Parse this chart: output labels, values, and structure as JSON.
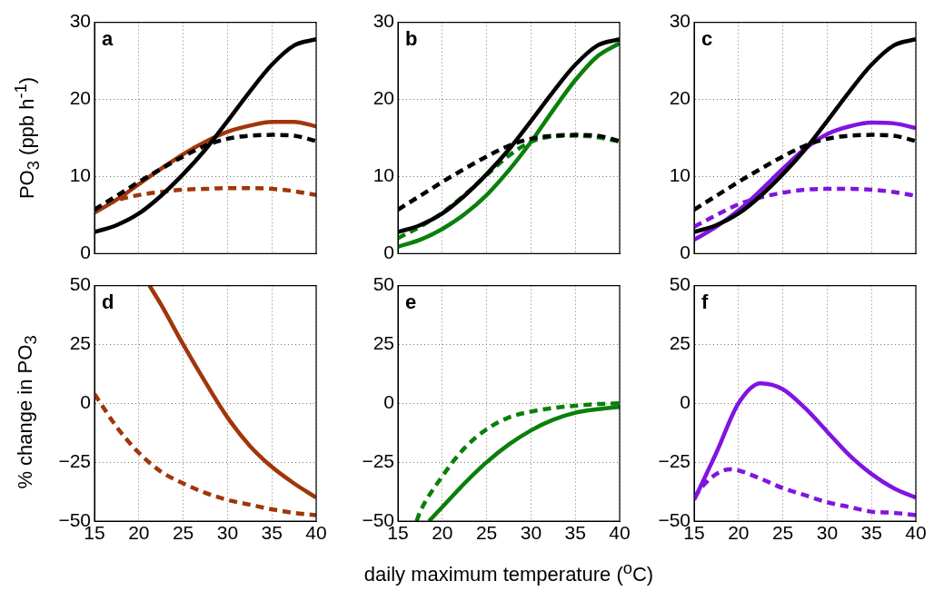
{
  "chart_data": [
    {
      "type": "line",
      "ylabel": "PO$_{3}$ (ppb h$^{-1}$)",
      "annotations": [
        "a"
      ],
      "x": [
        15,
        17.5,
        20,
        22.5,
        25,
        27.5,
        30,
        32.5,
        35,
        37.5,
        40
      ],
      "xlim": [
        15,
        40
      ],
      "xticks": [
        15,
        20,
        25,
        30,
        35,
        40
      ],
      "ylim": [
        0,
        30
      ],
      "yticks": [
        0,
        10,
        20,
        30
      ],
      "grid": true,
      "tick_labels": "y",
      "series": [
        {
          "color": "#000000",
          "line_style": "solid",
          "values": [
            2.8,
            3.7,
            5.2,
            7.5,
            10.3,
            13.5,
            17.2,
            21,
            24.5,
            27,
            27.8
          ]
        },
        {
          "color": "#000000",
          "line_style": "dashed",
          "values": [
            5.7,
            7.5,
            9.3,
            11,
            12.6,
            14,
            14.9,
            15.3,
            15.4,
            15.3,
            14.6
          ]
        },
        {
          "color": "#a0360a",
          "line_style": "solid",
          "values": [
            5.3,
            7,
            9,
            11,
            12.9,
            14.5,
            15.8,
            16.6,
            17.1,
            17.1,
            16.5
          ]
        },
        {
          "color": "#a0360a",
          "line_style": "dashed",
          "values": [
            5.8,
            6.9,
            7.6,
            8,
            8.3,
            8.4,
            8.5,
            8.5,
            8.4,
            8.1,
            7.6
          ]
        }
      ]
    },
    {
      "type": "line",
      "annotations": [
        "b"
      ],
      "x": [
        15,
        17.5,
        20,
        22.5,
        25,
        27.5,
        30,
        32.5,
        35,
        37.5,
        40
      ],
      "xlim": [
        15,
        40
      ],
      "xticks": [
        15,
        20,
        25,
        30,
        35,
        40
      ],
      "ylim": [
        0,
        30
      ],
      "yticks": [
        0,
        10,
        20,
        30
      ],
      "grid": true,
      "tick_labels": "y",
      "series": [
        {
          "color": "#000000",
          "line_style": "solid",
          "values": [
            2.8,
            3.7,
            5.2,
            7.5,
            10.3,
            13.5,
            17.2,
            21,
            24.5,
            27,
            27.8
          ]
        },
        {
          "color": "#000000",
          "line_style": "dashed",
          "values": [
            5.7,
            7.5,
            9.3,
            11,
            12.6,
            14,
            14.9,
            15.3,
            15.4,
            15.3,
            14.6
          ]
        },
        {
          "color": "#0a7f0a",
          "line_style": "solid",
          "values": [
            0.9,
            1.8,
            3.2,
            5.1,
            7.6,
            10.8,
            14.5,
            18.6,
            22.5,
            25.6,
            27.3
          ]
        },
        {
          "color": "#0a7f0a",
          "line_style": "dashed",
          "values": [
            2,
            3.5,
            5.3,
            7.6,
            10.2,
            12.7,
            14.5,
            15.2,
            15.3,
            15.1,
            14.5
          ]
        }
      ]
    },
    {
      "type": "line",
      "annotations": [
        "c"
      ],
      "x": [
        15,
        17.5,
        20,
        22.5,
        25,
        27.5,
        30,
        32.5,
        35,
        37.5,
        40
      ],
      "xlim": [
        15,
        40
      ],
      "xticks": [
        15,
        20,
        25,
        30,
        35,
        40
      ],
      "ylim": [
        0,
        30
      ],
      "yticks": [
        0,
        10,
        20,
        30
      ],
      "grid": true,
      "tick_labels": "y",
      "series": [
        {
          "color": "#000000",
          "line_style": "solid",
          "values": [
            2.8,
            3.7,
            5.2,
            7.5,
            10.3,
            13.5,
            17.2,
            21,
            24.5,
            27,
            27.8
          ]
        },
        {
          "color": "#000000",
          "line_style": "dashed",
          "values": [
            5.7,
            7.5,
            9.3,
            11,
            12.6,
            14,
            14.9,
            15.3,
            15.4,
            15.3,
            14.6
          ]
        },
        {
          "color": "#8014e0",
          "line_style": "solid",
          "values": [
            1.8,
            3.5,
            5.6,
            8.2,
            11,
            13.6,
            15.5,
            16.5,
            17,
            16.9,
            16.3
          ]
        },
        {
          "color": "#8014e0",
          "line_style": "dashed",
          "values": [
            3.5,
            5,
            6.4,
            7.3,
            7.9,
            8.3,
            8.4,
            8.4,
            8.3,
            8,
            7.5
          ]
        }
      ]
    },
    {
      "type": "line",
      "ylabel": "% change in PO$_{3}$",
      "annotations": [
        "d"
      ],
      "xlim": [
        15,
        40
      ],
      "xticks": [
        15,
        20,
        25,
        30,
        35,
        40
      ],
      "ylim": [
        -50,
        50
      ],
      "yticks": [
        -50,
        -25,
        0,
        25,
        50
      ],
      "grid": true,
      "series": [
        {
          "color": "#a0360a",
          "line_style": "solid",
          "x": [
            21.2,
            22.5,
            25,
            27.5,
            30,
            32.5,
            35,
            37.5,
            40
          ],
          "values": [
            50,
            42,
            25,
            9,
            -6,
            -18,
            -27,
            -34,
            -40
          ]
        },
        {
          "color": "#a0360a",
          "line_style": "dashed",
          "x": [
            15,
            17.5,
            20,
            22.5,
            25,
            27.5,
            30,
            32.5,
            35,
            37.5,
            40
          ],
          "values": [
            4,
            -10,
            -21,
            -29,
            -34,
            -38,
            -41,
            -43,
            -45,
            -46.5,
            -47.5
          ]
        }
      ]
    },
    {
      "type": "line",
      "xlabel": "daily maximum temperature ($^{o}$C)",
      "annotations": [
        "e"
      ],
      "xlim": [
        15,
        40
      ],
      "xticks": [
        15,
        20,
        25,
        30,
        35,
        40
      ],
      "ylim": [
        -50,
        50
      ],
      "yticks": [
        -50,
        -25,
        0,
        25,
        50
      ],
      "grid": true,
      "series": [
        {
          "color": "#0a7f0a",
          "line_style": "solid",
          "x": [
            18.5,
            20,
            22.5,
            25,
            27.5,
            30,
            32.5,
            35,
            37.5,
            40
          ],
          "values": [
            -50,
            -44,
            -34,
            -25,
            -17.5,
            -11.5,
            -7,
            -4,
            -2.5,
            -1.5
          ]
        },
        {
          "color": "#0a7f0a",
          "line_style": "dashed",
          "x": [
            17.1,
            17.5,
            20,
            22.5,
            25,
            27.5,
            30,
            32.5,
            35,
            37.5,
            40
          ],
          "values": [
            -50,
            -46,
            -31,
            -19,
            -11,
            -6,
            -3.5,
            -2,
            -1,
            -0.3,
            0
          ]
        }
      ]
    },
    {
      "type": "line",
      "annotations": [
        "f"
      ],
      "xlim": [
        15,
        40
      ],
      "xticks": [
        15,
        20,
        25,
        30,
        35,
        40
      ],
      "ylim": [
        -50,
        50
      ],
      "yticks": [
        -50,
        -25,
        0,
        25,
        50
      ],
      "grid": true,
      "series": [
        {
          "color": "#8014e0",
          "line_style": "solid",
          "x": [
            15,
            17.5,
            20,
            22.5,
            25,
            27.5,
            30,
            32.5,
            35,
            37.5,
            40
          ],
          "values": [
            -41,
            -21,
            0,
            8.5,
            6,
            -2,
            -12,
            -22,
            -30,
            -36,
            -40
          ]
        },
        {
          "color": "#8014e0",
          "line_style": "dashed",
          "x": [
            15,
            16,
            17.5,
            19,
            20,
            22.5,
            25,
            27.5,
            30,
            32.5,
            35,
            37.5,
            40
          ],
          "values": [
            -40,
            -35,
            -30,
            -28,
            -28.5,
            -32,
            -36,
            -39,
            -42,
            -44,
            -46,
            -46.5,
            -47.5
          ]
        }
      ]
    }
  ]
}
